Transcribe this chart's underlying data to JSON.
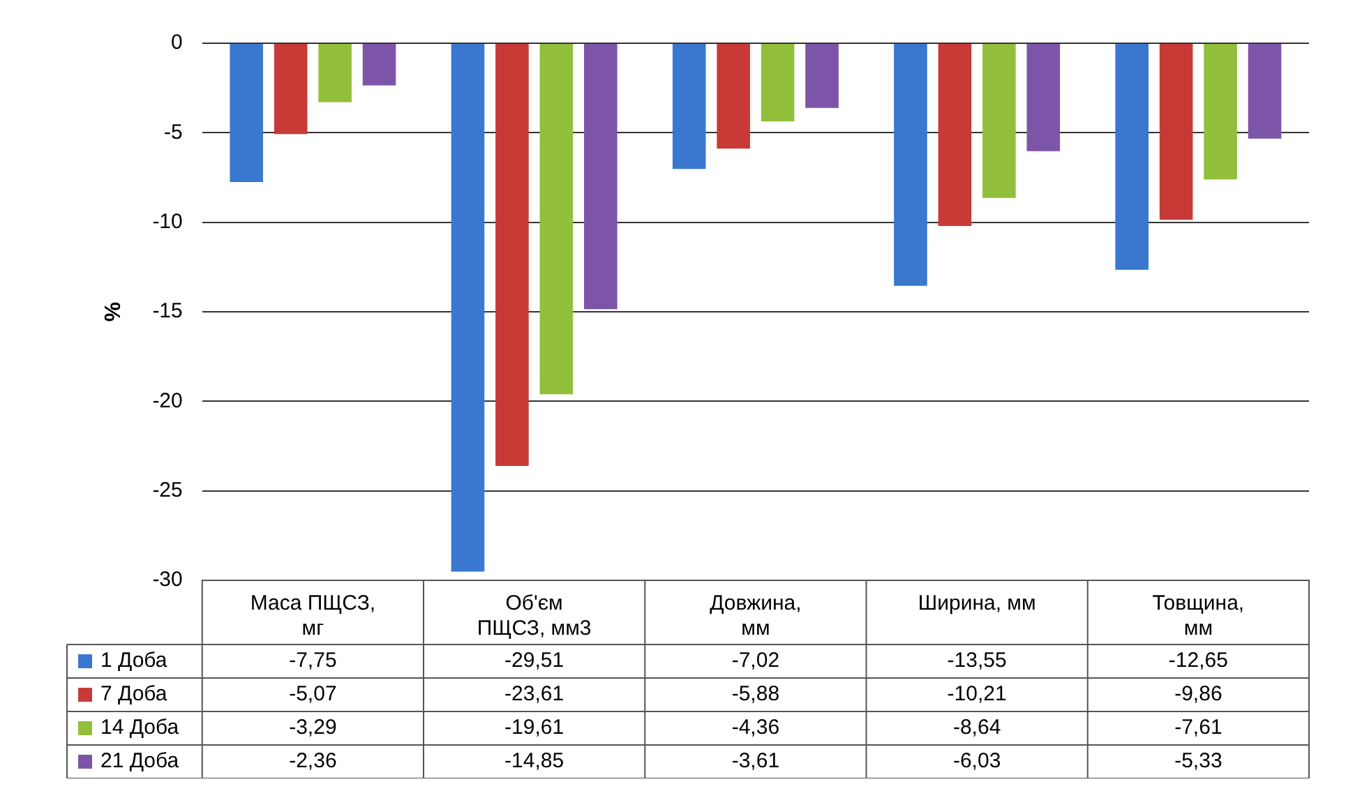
{
  "chart_data": {
    "type": "bar",
    "ylabel": "%",
    "categories": [
      "Маса ПЩСЗ, мг",
      "Об'єм ПЩСЗ, мм3",
      "Довжина, мм",
      "Ширина, мм",
      "Товщина, мм"
    ],
    "series": [
      {
        "name": "1 Доба",
        "color": "#3a78d0",
        "values": [
          -7.75,
          -29.51,
          -7.02,
          -13.55,
          -12.65
        ],
        "value_labels": [
          "-7,75",
          "-29,51",
          "-7,02",
          "-13,55",
          "-12,65"
        ]
      },
      {
        "name": "7 Доба",
        "color": "#c83a36",
        "values": [
          -5.07,
          -23.61,
          -5.88,
          -10.21,
          -9.86
        ],
        "value_labels": [
          "-5,07",
          "-23,61",
          "-5,88",
          "-10,21",
          "-9,86"
        ]
      },
      {
        "name": "14 Доба",
        "color": "#92bf3c",
        "values": [
          -3.29,
          -19.61,
          -4.36,
          -8.64,
          -7.61
        ],
        "value_labels": [
          "-3,29",
          "-19,61",
          "-4,36",
          "-8,64",
          "-7,61"
        ]
      },
      {
        "name": "21 Доба",
        "color": "#7d55a8",
        "values": [
          -2.36,
          -14.85,
          -3.61,
          -6.03,
          -5.33
        ],
        "value_labels": [
          "-2,36",
          "-14,85",
          "-3,61",
          "-6,03",
          "-5,33"
        ]
      }
    ],
    "ylim": [
      -30,
      0
    ],
    "yticks": [
      -30,
      -25,
      -20,
      -15,
      -10,
      -5,
      0
    ],
    "grid": "y",
    "legend": "bottom left"
  }
}
